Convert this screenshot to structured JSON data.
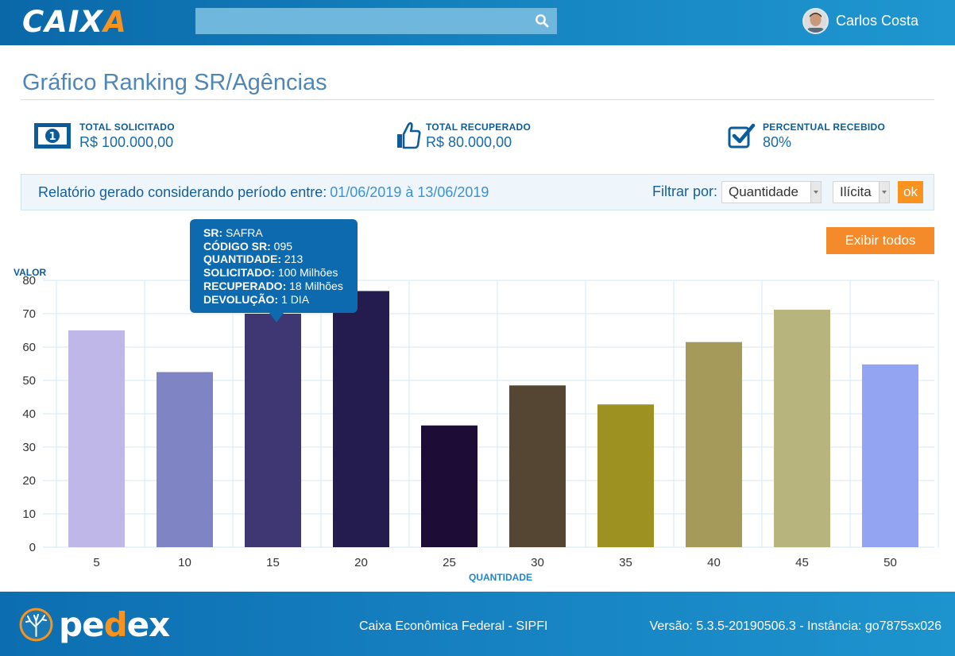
{
  "header": {
    "logo_text_a": "CAIX",
    "logo_text_b": "A",
    "search": {
      "placeholder": "",
      "value": ""
    },
    "user_name": "Carlos Costa"
  },
  "page_title": "Gráfico Ranking SR/Agências",
  "stats": [
    {
      "label": "TOTAL SOLICITADO",
      "value": "R$ 100.000,00",
      "icon": "money-icon"
    },
    {
      "label": "TOTAL RECUPERADO",
      "value": "R$ 80.000,00",
      "icon": "thumbs-up-icon"
    },
    {
      "label": "PERCENTUAL RECEBIDO",
      "value": "80%",
      "icon": "check-square-icon"
    }
  ],
  "report": {
    "text": "Relatório gerado considerando período entre:",
    "period": "01/06/2019 à 13/06/2019",
    "filter_label": "Filtrar por:",
    "filter_select_value": "Quantidade",
    "type_select_value": "Ilícita",
    "ok_label": "ok"
  },
  "show_all_label": "Exibir todos",
  "tooltip": {
    "sr_label": "SR:",
    "sr_value": "SAFRA",
    "code_label": "CÓDIGO SR:",
    "code_value": "095",
    "qty_label": "QUANTIDADE:",
    "qty_value": "213",
    "requested_label": "SOLICITADO:",
    "requested_value": "100 Milhões",
    "recovered_label": "RECUPERADO:",
    "recovered_value": "18 Milhões",
    "return_label": "DEVOLUÇÃO:",
    "return_value": "1 DIA"
  },
  "chart_data": {
    "type": "bar",
    "categories": [
      "5",
      "10",
      "15",
      "20",
      "25",
      "30",
      "35",
      "40",
      "45",
      "50"
    ],
    "values": [
      65,
      52.5,
      70,
      76.8,
      36.5,
      48.5,
      42.8,
      61.5,
      71.2,
      54.8
    ],
    "colors": [
      "#bfb7e8",
      "#7f85c4",
      "#3e3774",
      "#241c4e",
      "#1c0c36",
      "#554533",
      "#9d9122",
      "#a69a5b",
      "#b7b47e",
      "#93a4f3"
    ],
    "xlabel": "QUANTIDADE",
    "ylabel": "VALOR",
    "ylim": [
      0,
      80
    ],
    "yticks": [
      0,
      10,
      20,
      30,
      40,
      50,
      60,
      70,
      80
    ],
    "grid": true,
    "legend": "none"
  },
  "footer": {
    "brand_a": "pe",
    "brand_b": "d",
    "brand_c": "ex",
    "center": "Caixa Econômica Federal - SIPFI",
    "right": "Versão: 5.3.5-20190506.3 - Instância: go7875sx026"
  }
}
